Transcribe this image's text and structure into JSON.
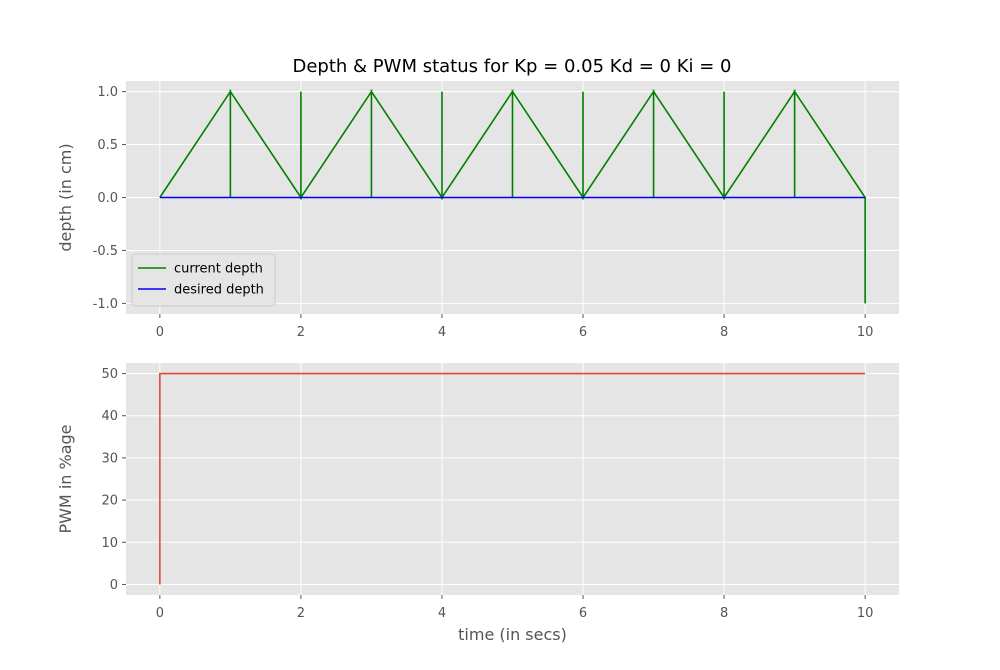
{
  "figure_title": "Depth & PWM status for Kp = 0.05 Kd = 0 Ki = 0",
  "chart_data": [
    {
      "type": "line",
      "title": "",
      "xlabel": "",
      "ylabel": "depth (in cm)",
      "xlim": [
        -0.48,
        10.48
      ],
      "ylim": [
        -1.1,
        1.1
      ],
      "x_ticks": [
        0,
        2,
        4,
        6,
        8,
        10
      ],
      "y_ticks": [
        1.0,
        0.5,
        0.0,
        -0.5,
        -1.0
      ],
      "grid": true,
      "legend_position": "lower-left",
      "series": [
        {
          "name": "current depth",
          "color": "#008000",
          "x": [
            0,
            1,
            1,
            1,
            2,
            2,
            2,
            3,
            3,
            3,
            4,
            4,
            4,
            5,
            5,
            5,
            6,
            6,
            6,
            7,
            7,
            7,
            8,
            8,
            8,
            9,
            9,
            9,
            10,
            10
          ],
          "y": [
            0,
            1,
            0,
            1,
            0,
            1,
            0,
            1,
            0,
            1,
            0,
            1,
            0,
            1,
            0,
            1,
            0,
            1,
            0,
            1,
            0,
            1,
            0,
            1,
            0,
            1,
            0,
            1,
            0,
            -1
          ]
        },
        {
          "name": "desired depth",
          "color": "#0000ff",
          "x": [
            0,
            10
          ],
          "y": [
            0,
            0
          ]
        }
      ]
    },
    {
      "type": "line",
      "title": "",
      "xlabel": "time (in secs)",
      "ylabel": "PWM in %age",
      "xlim": [
        -0.48,
        10.48
      ],
      "ylim": [
        -2.5,
        52.5
      ],
      "x_ticks": [
        0,
        2,
        4,
        6,
        8,
        10
      ],
      "y_ticks": [
        0,
        10,
        20,
        30,
        40,
        50
      ],
      "grid": true,
      "series": [
        {
          "color": "#e24a33",
          "x": [
            0,
            0,
            10
          ],
          "y": [
            0,
            50,
            50
          ]
        }
      ]
    }
  ]
}
